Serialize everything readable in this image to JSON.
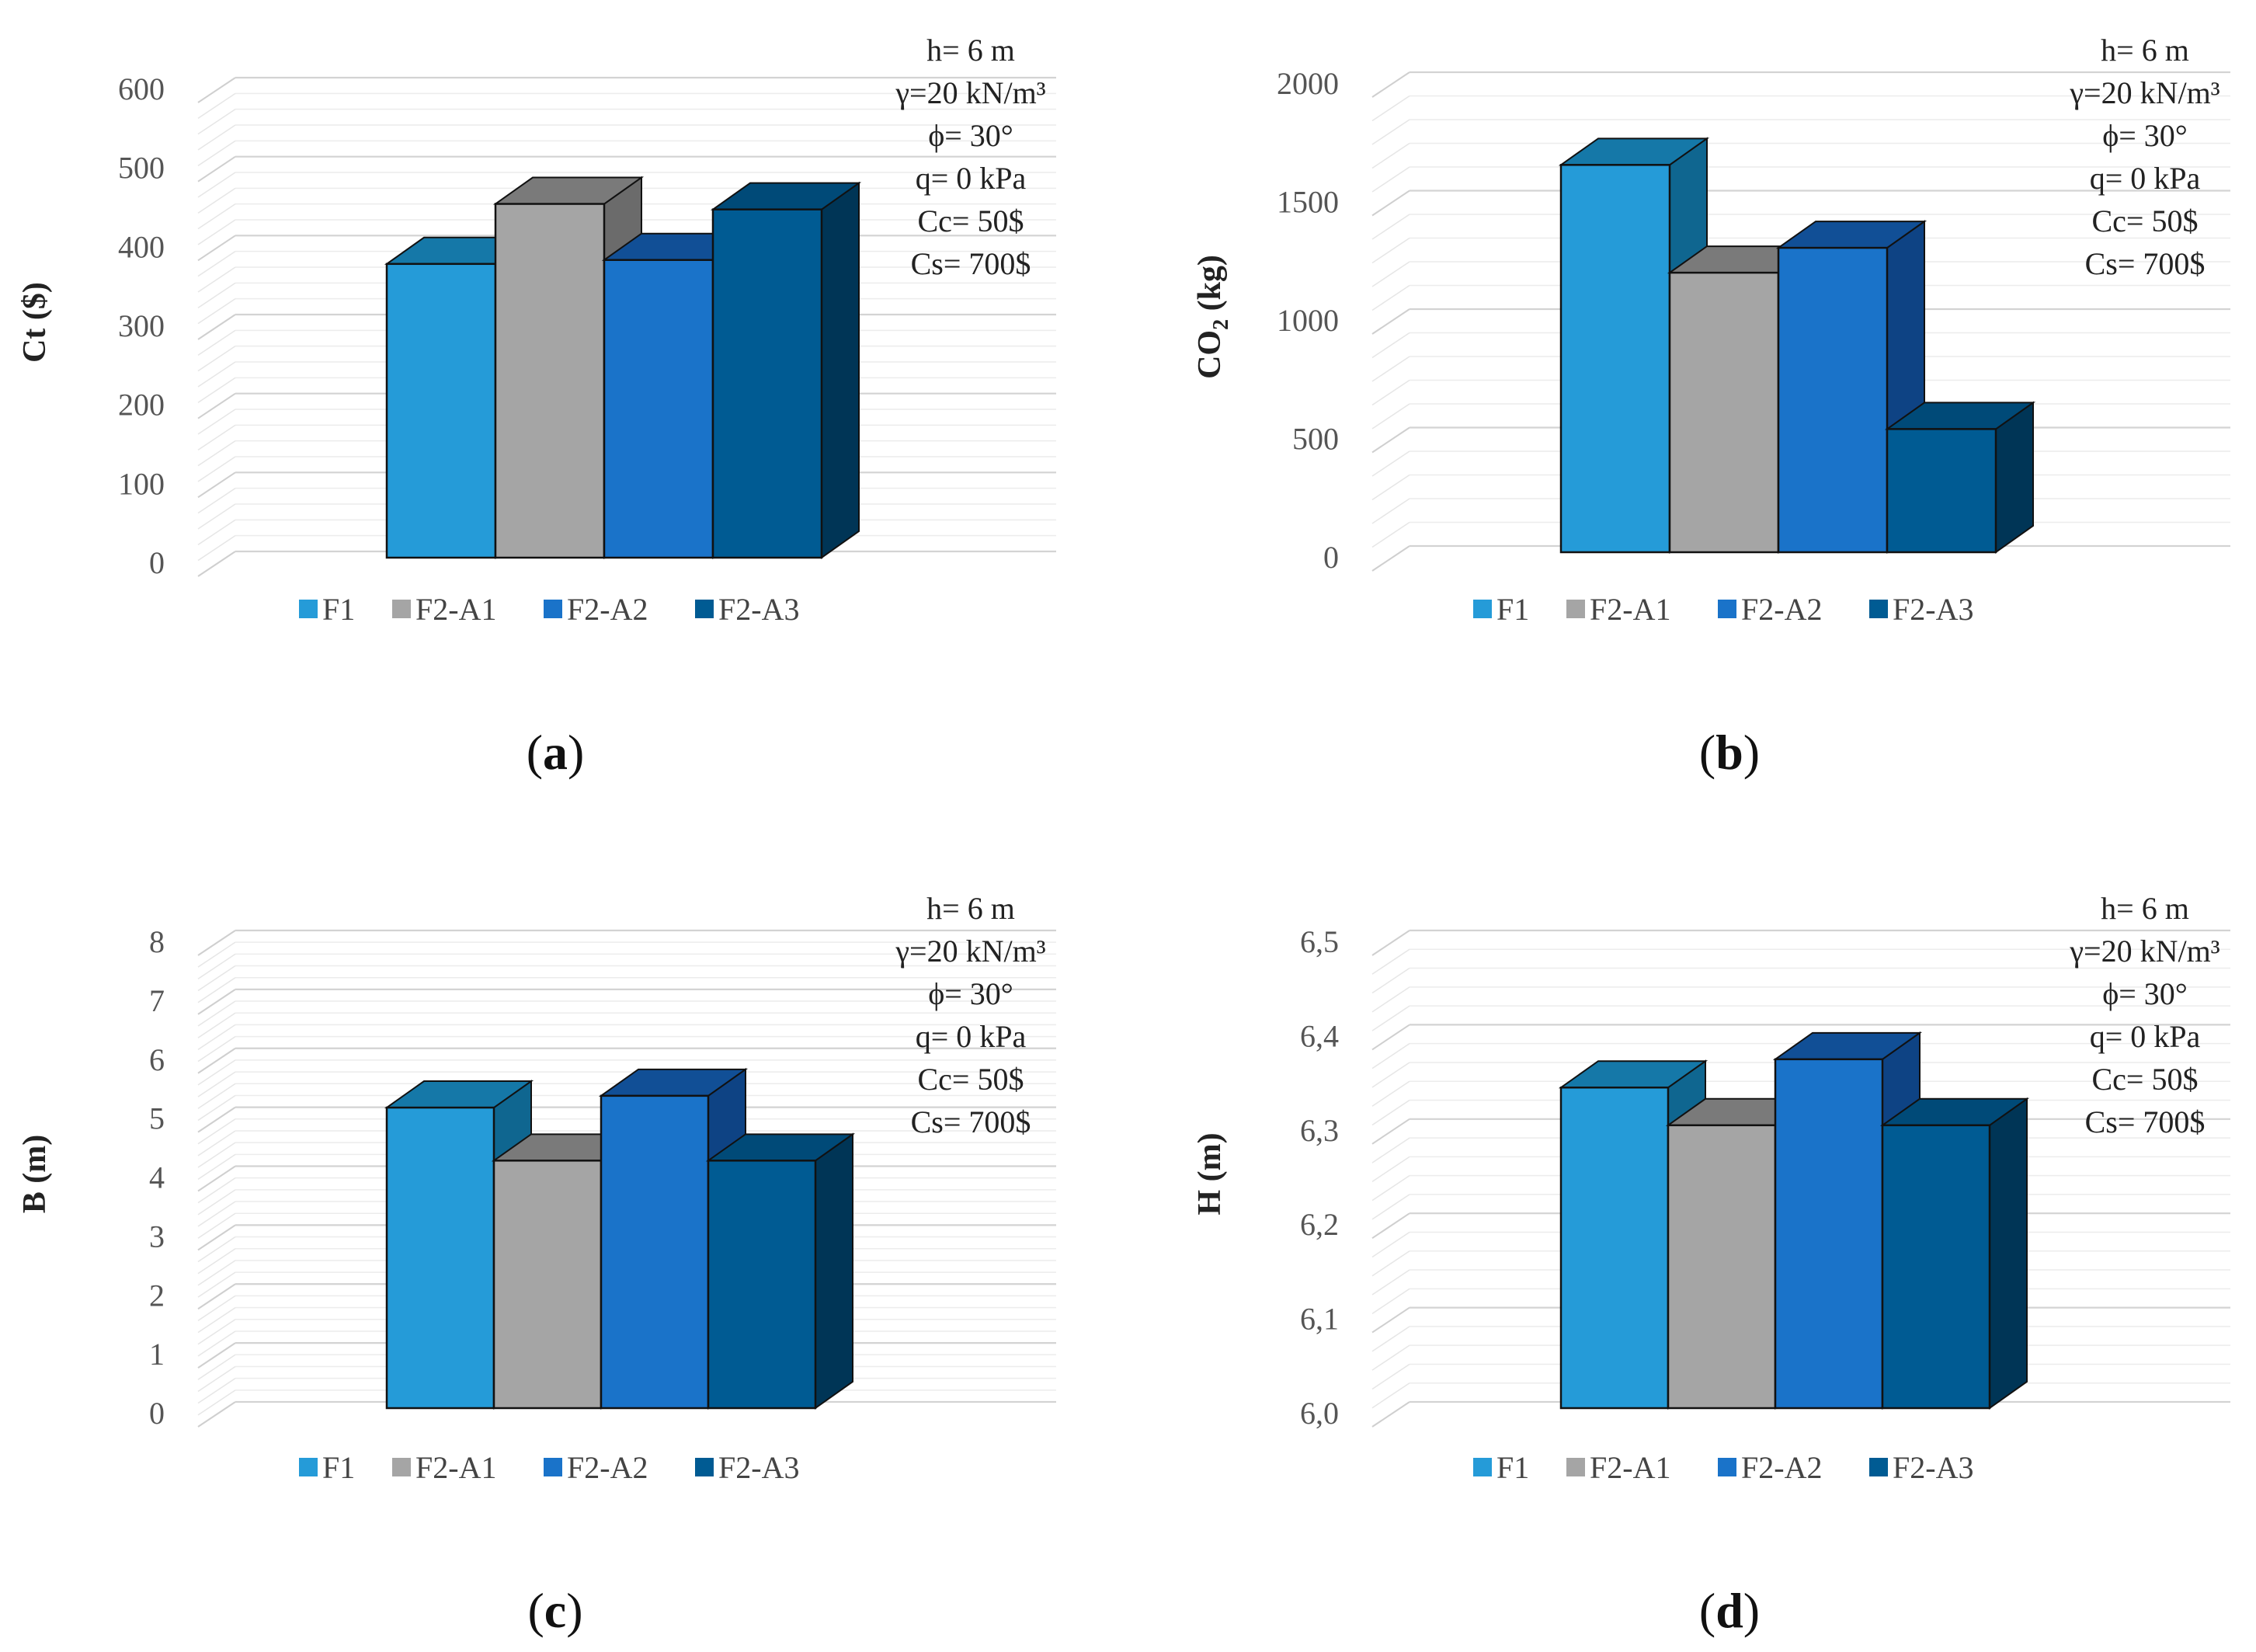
{
  "legend": [
    "F1",
    "F2-A1",
    "F2-A2",
    "F2-A3"
  ],
  "annotation": [
    "h= 6 m",
    "γ=20 kN/m³",
    "ϕ= 30°",
    "q= 0 kPa",
    "Cc= 50$",
    "Cs= 700$"
  ],
  "colors": {
    "F1": {
      "front": "#259bd8",
      "top": "#1578a8",
      "side": "#0f6690"
    },
    "F2-A1": {
      "front": "#a5a5a5",
      "top": "#7a7a7a",
      "side": "#6b6b6b"
    },
    "F2-A2": {
      "front": "#1a73c9",
      "top": "#114f96",
      "side": "#0e4384"
    },
    "F2-A3": {
      "front": "#005b93",
      "top": "#004a78",
      "side": "#003556"
    }
  },
  "chart_data": [
    {
      "type": "bar",
      "panel_label": "a",
      "ylabel": "Ct ($)",
      "categories": [
        "F1",
        "F2-A1",
        "F2-A2",
        "F2-A3"
      ],
      "values": [
        372,
        448,
        377,
        441
      ],
      "yticks": [
        "0",
        "100",
        "200",
        "300",
        "400",
        "500",
        "600"
      ],
      "ylim": [
        0,
        600
      ],
      "tick_step": 100
    },
    {
      "type": "bar",
      "panel_label": "b",
      "ylabel": "CO2 (kg)",
      "ylabel_parts": [
        "CO",
        "2",
        " (kg)"
      ],
      "categories": [
        "F1",
        "F2-A1",
        "F2-A2",
        "F2-A3"
      ],
      "values": [
        1635,
        1180,
        1285,
        520
      ],
      "yticks": [
        "0",
        "500",
        "1000",
        "1500",
        "2000"
      ],
      "ylim": [
        0,
        2000
      ],
      "tick_step": 500
    },
    {
      "type": "bar",
      "panel_label": "c",
      "ylabel": "B (m)",
      "categories": [
        "F1",
        "F2-A1",
        "F2-A2",
        "F2-A3"
      ],
      "values": [
        5.1,
        4.2,
        5.3,
        4.2
      ],
      "yticks": [
        "0",
        "1",
        "2",
        "3",
        "4",
        "5",
        "6",
        "7",
        "8"
      ],
      "ylim": [
        0,
        8
      ],
      "tick_step": 1
    },
    {
      "type": "bar",
      "panel_label": "d",
      "ylabel": "H (m)",
      "categories": [
        "F1",
        "F2-A1",
        "F2-A2",
        "F2-A3"
      ],
      "values": [
        6.34,
        6.3,
        6.37,
        6.3
      ],
      "yticks": [
        "6,0",
        "6,1",
        "6,2",
        "6,3",
        "6,4",
        "6,5"
      ],
      "ylim": [
        6.0,
        6.5
      ],
      "tick_step": 0.1
    }
  ]
}
